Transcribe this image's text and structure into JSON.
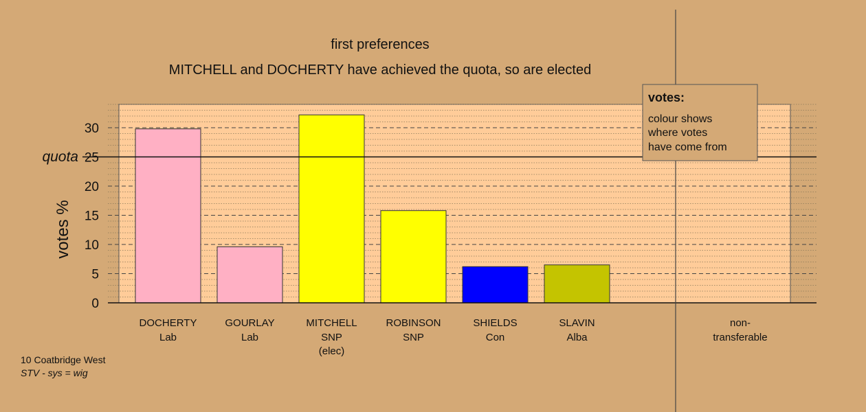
{
  "chart_data": {
    "type": "bar",
    "title": "first preferences",
    "subtitle": "MITCHELL and DOCHERTY have achieved the quota, so are elected",
    "ylabel": "votes %",
    "ylim": [
      0,
      34
    ],
    "yticks": [
      0,
      5,
      10,
      15,
      20,
      25,
      30
    ],
    "quota": 25,
    "quota_label": "quota",
    "categories": [
      {
        "name": "DOCHERTY",
        "party": "Lab",
        "note": ""
      },
      {
        "name": "GOURLAY",
        "party": "Lab",
        "note": ""
      },
      {
        "name": "MITCHELL",
        "party": "SNP",
        "note": "(elec)"
      },
      {
        "name": "ROBINSON",
        "party": "SNP",
        "note": ""
      },
      {
        "name": "SHIELDS",
        "party": "Con",
        "note": ""
      },
      {
        "name": "SLAVIN",
        "party": "Alba",
        "note": ""
      }
    ],
    "values": [
      29.8,
      9.6,
      32.2,
      15.8,
      6.2,
      6.5
    ],
    "colors": [
      "#ffb0c4",
      "#ffb0c4",
      "#ffff00",
      "#ffff00",
      "#0000ff",
      "#c4c400"
    ],
    "non_transferable": {
      "label_line1": "non-",
      "label_line2": "transferable",
      "value": 0
    },
    "legend": {
      "title": "votes:",
      "lines": [
        "colour shows",
        "where votes",
        "have come from"
      ],
      "position": "top-right"
    },
    "grid": true
  },
  "footer": {
    "ward": "10 Coatbridge West",
    "system": "STV - sys = wig"
  },
  "colors": {
    "background": "#d4a976",
    "plot_area": "#ffcc99",
    "legend_bg": "#d4a976"
  }
}
